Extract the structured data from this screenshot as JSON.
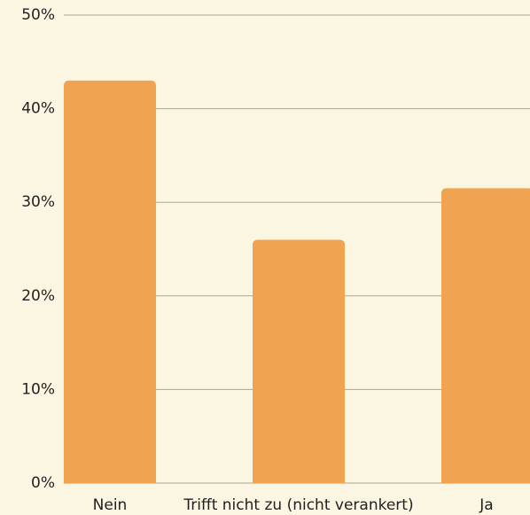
{
  "chart_data": {
    "type": "bar",
    "categories": [
      "Nein",
      "Trifft nicht zu (nicht verankert)",
      "Ja"
    ],
    "values": [
      43,
      26,
      31.5
    ],
    "color": "#f0a452",
    "ylim": [
      0,
      50
    ],
    "yticks": [
      {
        "value": 0,
        "label": "0%"
      },
      {
        "value": 10,
        "label": "10%"
      },
      {
        "value": 20,
        "label": "20%"
      },
      {
        "value": 30,
        "label": "30%"
      },
      {
        "value": 40,
        "label": "40%"
      },
      {
        "value": 50,
        "label": "50%"
      }
    ],
    "grid": true
  }
}
